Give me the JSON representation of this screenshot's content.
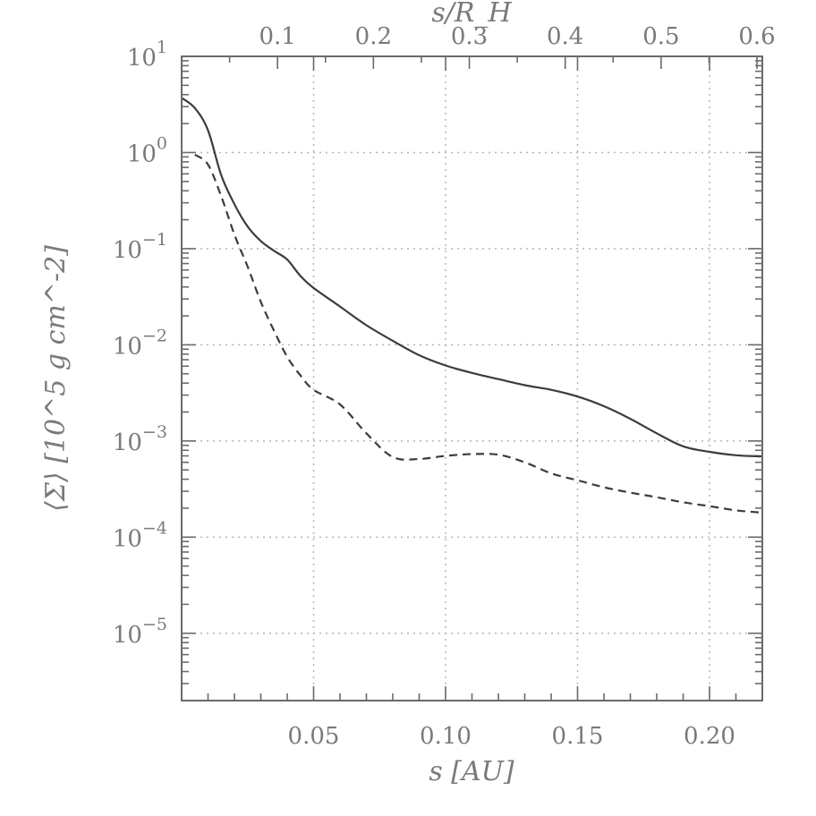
{
  "chart_data": {
    "type": "line",
    "title": "",
    "xlabel": "s   [AU]",
    "ylabel": "⟨Σ⟩  [10^5 g cm^-2]",
    "top_xlabel": "s/R_H",
    "xlim": [
      0.0,
      0.22
    ],
    "ylim_log10": [
      -5.7,
      1.0
    ],
    "yscale": "log",
    "grid": true,
    "grid_style": "dotted",
    "x_ticks": [
      0.05,
      0.1,
      0.15,
      0.2
    ],
    "x_tick_labels": [
      "0.05",
      "0.10",
      "0.15",
      "0.20"
    ],
    "y_ticks_log10": [
      1,
      0,
      -1,
      -2,
      -3,
      -4,
      -5
    ],
    "y_tick_base": "10",
    "y_tick_exponents": [
      "1",
      "0",
      "−1",
      "−2",
      "−3",
      "−4",
      "−5"
    ],
    "top_x_ticks": [
      0.1,
      0.2,
      0.3,
      0.4,
      0.5,
      0.6
    ],
    "top_x_tick_labels": [
      "0.1",
      "0.2",
      "0.3",
      "0.4",
      "0.5",
      "0.6"
    ],
    "top_axis_scale_s_per_RH": 0.3633,
    "series": [
      {
        "style": "solid",
        "x": [
          0.0,
          0.005,
          0.01,
          0.015,
          0.02,
          0.025,
          0.03,
          0.035,
          0.04,
          0.045,
          0.05,
          0.06,
          0.07,
          0.08,
          0.09,
          0.1,
          0.11,
          0.12,
          0.13,
          0.14,
          0.15,
          0.16,
          0.17,
          0.18,
          0.19,
          0.2,
          0.21,
          0.22
        ],
        "y": [
          3.7,
          2.9,
          1.7,
          0.58,
          0.29,
          0.17,
          0.12,
          0.095,
          0.077,
          0.052,
          0.039,
          0.025,
          0.016,
          0.011,
          0.0078,
          0.0061,
          0.0051,
          0.0044,
          0.0038,
          0.0034,
          0.0029,
          0.0023,
          0.0017,
          0.0012,
          0.00088,
          0.00077,
          0.00071,
          0.00069
        ]
      },
      {
        "style": "dashed",
        "x": [
          0.005,
          0.01,
          0.015,
          0.02,
          0.025,
          0.03,
          0.035,
          0.04,
          0.045,
          0.05,
          0.06,
          0.07,
          0.08,
          0.09,
          0.1,
          0.11,
          0.12,
          0.13,
          0.14,
          0.15,
          0.16,
          0.17,
          0.18,
          0.19,
          0.2,
          0.21,
          0.22
        ],
        "y": [
          0.95,
          0.75,
          0.35,
          0.14,
          0.065,
          0.028,
          0.014,
          0.0075,
          0.0048,
          0.0034,
          0.0024,
          0.0012,
          0.00068,
          0.00065,
          0.0007,
          0.00073,
          0.00072,
          0.0006,
          0.00046,
          0.00039,
          0.00033,
          0.00029,
          0.00026,
          0.00023,
          0.00021,
          0.00019,
          0.00018
        ]
      }
    ]
  }
}
